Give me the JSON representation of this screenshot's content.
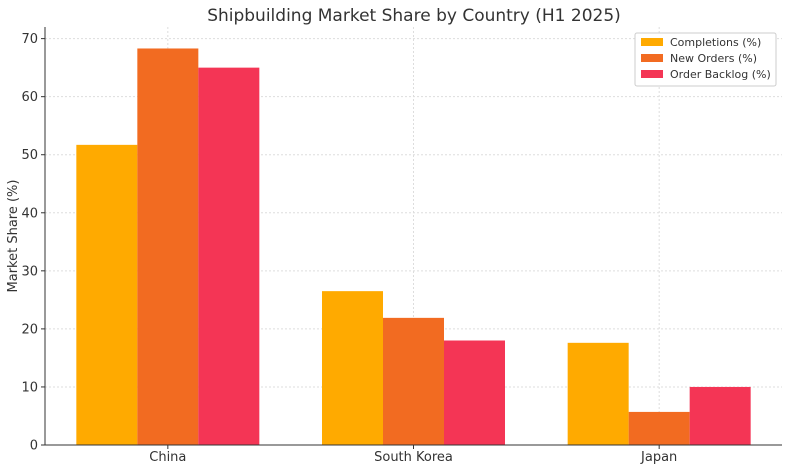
{
  "chart_data": {
    "type": "bar",
    "title": "Shipbuilding Market Share by Country (H1 2025)",
    "xlabel": "",
    "ylabel": "Market Share (%)",
    "ylim": [
      0,
      72
    ],
    "yticks": [
      0,
      10,
      20,
      30,
      40,
      50,
      60,
      70
    ],
    "grid": true,
    "legend_position": "top-right",
    "categories": [
      "China",
      "South Korea",
      "Japan"
    ],
    "series": [
      {
        "name": "Completions (%)",
        "color": "#FFAA00",
        "values": [
          51.7,
          26.5,
          17.6
        ]
      },
      {
        "name": "New Orders (%)",
        "color": "#F26B21",
        "values": [
          68.3,
          21.9,
          5.7
        ]
      },
      {
        "name": "Order Backlog (%)",
        "color": "#F43555",
        "values": [
          65.0,
          18.0,
          10.0
        ]
      }
    ]
  }
}
